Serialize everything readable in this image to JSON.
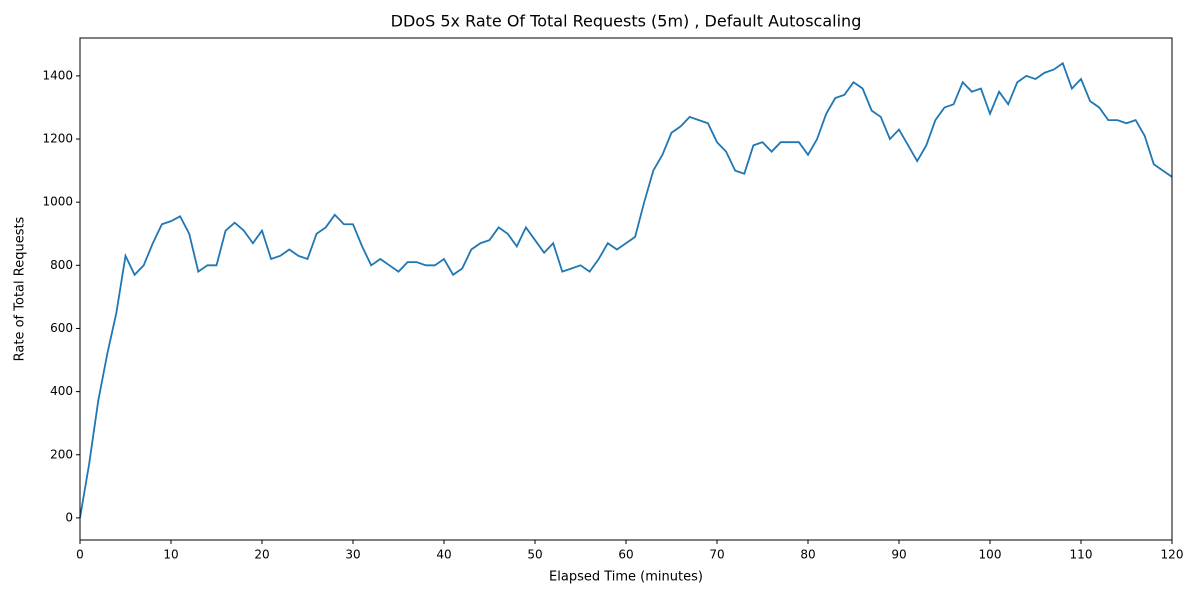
{
  "chart_data": {
    "type": "line",
    "title": "DDoS 5x Rate Of Total Requests (5m) , Default Autoscaling",
    "x_label": "Elapsed Time (minutes)",
    "y_label": "Rate of Total Requests",
    "x": [
      0,
      1,
      2,
      3,
      4,
      5,
      6,
      7,
      8,
      9,
      10,
      11,
      12,
      13,
      14,
      15,
      16,
      17,
      18,
      19,
      20,
      21,
      22,
      23,
      24,
      25,
      26,
      27,
      28,
      29,
      30,
      31,
      32,
      33,
      34,
      35,
      36,
      37,
      38,
      39,
      40,
      41,
      42,
      43,
      44,
      45,
      46,
      47,
      48,
      49,
      50,
      51,
      52,
      53,
      54,
      55,
      56,
      57,
      58,
      59,
      60,
      61,
      62,
      63,
      64,
      65,
      66,
      67,
      68,
      69,
      70,
      71,
      72,
      73,
      74,
      75,
      76,
      77,
      78,
      79,
      80,
      81,
      82,
      83,
      84,
      85,
      86,
      87,
      88,
      89,
      90,
      91,
      92,
      93,
      94,
      95,
      96,
      97,
      98,
      99,
      100,
      101,
      102,
      103,
      104,
      105,
      106,
      107,
      108,
      109,
      110,
      111,
      112,
      113,
      114,
      115,
      116,
      117,
      118,
      119,
      120
    ],
    "series": [
      {
        "name": "Rate of Total Requests",
        "color": "#1f77b4",
        "values": [
          0,
          170,
          370,
          520,
          650,
          830,
          770,
          800,
          870,
          930,
          940,
          955,
          900,
          780,
          800,
          800,
          910,
          935,
          910,
          870,
          910,
          820,
          830,
          850,
          830,
          820,
          900,
          920,
          960,
          930,
          930,
          860,
          800,
          820,
          800,
          780,
          810,
          810,
          800,
          800,
          820,
          770,
          790,
          850,
          870,
          880,
          920,
          900,
          860,
          920,
          880,
          840,
          870,
          780,
          790,
          800,
          780,
          820,
          870,
          850,
          870,
          890,
          1000,
          1100,
          1150,
          1220,
          1240,
          1270,
          1260,
          1250,
          1190,
          1160,
          1100,
          1090,
          1180,
          1190,
          1160,
          1190,
          1190,
          1190,
          1150,
          1200,
          1280,
          1330,
          1340,
          1380,
          1360,
          1290,
          1270,
          1200,
          1230,
          1180,
          1130,
          1180,
          1260,
          1300,
          1310,
          1380,
          1350,
          1360,
          1280,
          1350,
          1310,
          1380,
          1400,
          1390,
          1410,
          1420,
          1440,
          1360,
          1390,
          1320,
          1300,
          1260,
          1260,
          1250,
          1260,
          1210,
          1120,
          1100,
          1080
        ]
      }
    ],
    "xlim": [
      0,
      120
    ],
    "xticks": [
      0,
      10,
      20,
      30,
      40,
      50,
      60,
      70,
      80,
      90,
      100,
      110,
      120
    ],
    "ylim": [
      -70,
      1520
    ],
    "yticks": [
      0,
      200,
      400,
      600,
      800,
      1000,
      1200,
      1400
    ]
  }
}
